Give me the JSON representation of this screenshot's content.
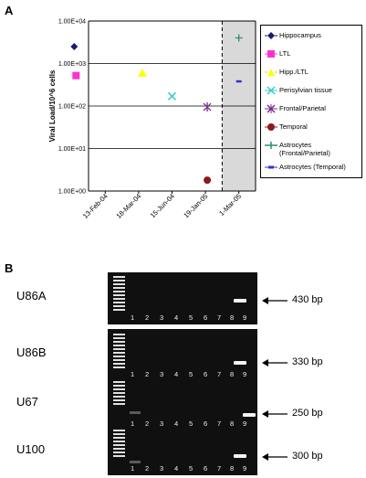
{
  "panel_a": {
    "letter": "A"
  },
  "panel_b": {
    "letter": "B"
  },
  "chart_data": {
    "type": "scatter",
    "title": "",
    "xlabel": "",
    "ylabel": "Viral Load/10^6 cells",
    "yscale": "log",
    "ylim": [
      1,
      10000
    ],
    "ytick_labels": [
      "1.00E+00",
      "1.00E+01",
      "1.00E+02",
      "1.00E+03",
      "1.00E+04"
    ],
    "ytick_values": [
      1,
      10,
      100,
      1000,
      10000
    ],
    "x_categories": [
      "13-Feb-04",
      "18-Mar-04",
      "15-Jun-04",
      "19-Jan-05",
      "1-Mar-05"
    ],
    "shaded_category": "1-Mar-05",
    "grid": true,
    "legend_position": "right",
    "series": [
      {
        "name": "Hippocampus",
        "marker": "diamond",
        "color": "#1a1a6e",
        "points": [
          {
            "x": "13-Feb-04",
            "y": 2500
          }
        ]
      },
      {
        "name": "LTL",
        "marker": "square",
        "color": "#ff33cc",
        "points": [
          {
            "x": "13-Feb-04",
            "y": 520
          }
        ]
      },
      {
        "name": "Hipp./LTL",
        "marker": "triangle",
        "color": "#ffff00",
        "points": [
          {
            "x": "18-Mar-04",
            "y": 600
          }
        ]
      },
      {
        "name": "Perisylvian tissue",
        "marker": "x",
        "color": "#33cccc",
        "points": [
          {
            "x": "15-Jun-04",
            "y": 170
          }
        ]
      },
      {
        "name": "Frontal/Parietal",
        "marker": "star",
        "color": "#7a2f8a",
        "points": [
          {
            "x": "19-Jan-05",
            "y": 95
          }
        ]
      },
      {
        "name": "Temporal",
        "marker": "circle",
        "color": "#8b1a1a",
        "points": [
          {
            "x": "19-Jan-05",
            "y": 1.8
          }
        ]
      },
      {
        "name": "Astrocytes (Frontal/Parietal)",
        "marker": "plus",
        "color": "#2e8b7a",
        "points": [
          {
            "x": "1-Mar-05",
            "y": 4000
          }
        ]
      },
      {
        "name": "Astrocytes (Temporal)",
        "marker": "dash",
        "color": "#3333cc",
        "points": [
          {
            "x": "1-Mar-05",
            "y": 380
          }
        ]
      }
    ]
  },
  "legend": {
    "items": [
      {
        "label": "Hippocampus"
      },
      {
        "label": "LTL"
      },
      {
        "label": "Hipp./LTL"
      },
      {
        "label": "Perisylvian tissue"
      },
      {
        "label": "Frontal/Parietal"
      },
      {
        "label": "Temporal"
      },
      {
        "label": "Astrocytes (Frontal/Parietal)"
      },
      {
        "label": "Astrocytes (Temporal)"
      }
    ]
  },
  "gels": [
    {
      "sample": "U86A",
      "size_label": "430 bp",
      "lanes": [
        "1",
        "2",
        "3",
        "4",
        "5",
        "6",
        "7",
        "8",
        "9"
      ]
    },
    {
      "sample": "U86B",
      "size_label": "330 bp",
      "lanes": [
        "1",
        "2",
        "3",
        "4",
        "5",
        "6",
        "7",
        "8",
        "9"
      ]
    },
    {
      "sample": "U67",
      "size_label": "250 bp",
      "lanes": [
        "1",
        "2",
        "3",
        "4",
        "5",
        "6",
        "7",
        "8",
        "9"
      ]
    },
    {
      "sample": "U100",
      "size_label": "300 bp",
      "lanes": [
        "1",
        "2",
        "3",
        "4",
        "5",
        "6",
        "7",
        "8",
        "9"
      ]
    }
  ]
}
